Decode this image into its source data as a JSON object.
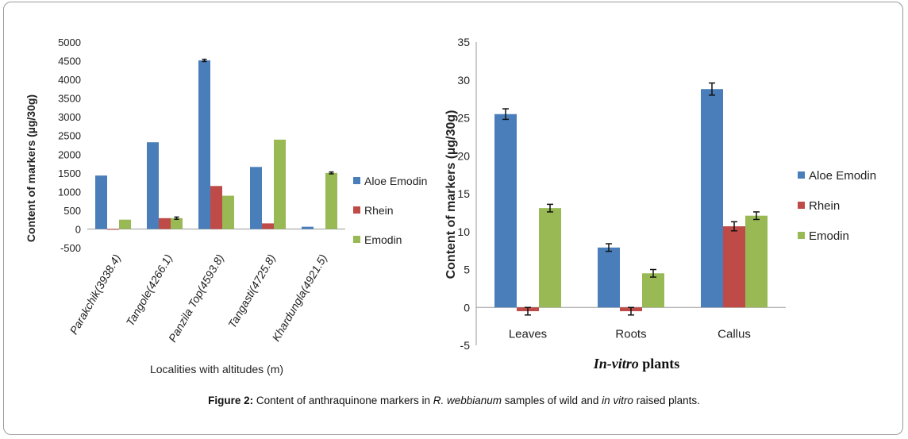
{
  "chart_data": [
    {
      "type": "bar",
      "categories": [
        "Parakchik(3938.4)",
        "Tangole(4266.1)",
        "Panzila Top(4593.8)",
        "Tangasti(4725.8)",
        "Khardungla(4921.5)"
      ],
      "series": [
        {
          "name": "Aloe Emodin",
          "values": [
            1430,
            2320,
            4510,
            1660,
            60
          ],
          "errors": [
            0,
            0,
            30,
            0,
            0
          ]
        },
        {
          "name": "Rhein",
          "values": [
            -20,
            290,
            1150,
            150,
            0
          ],
          "errors": [
            0,
            0,
            0,
            0,
            0
          ]
        },
        {
          "name": "Emodin",
          "values": [
            250,
            290,
            890,
            2390,
            1500
          ],
          "errors": [
            0,
            30,
            0,
            0,
            25
          ]
        }
      ],
      "title": "",
      "xlabel": "Localities with altitudes (m)",
      "ylabel": "Content of markers (µg/30g)",
      "ylim": [
        -500,
        5000
      ],
      "yticks": [
        "-500",
        "0",
        "500",
        "1000",
        "1500",
        "2000",
        "2500",
        "3000",
        "3500",
        "4000",
        "4500",
        "5000"
      ],
      "legend_position": "right"
    },
    {
      "type": "bar",
      "categories": [
        "Leaves",
        "Roots",
        "Callus"
      ],
      "series": [
        {
          "name": "Aloe Emodin",
          "values": [
            25.5,
            7.9,
            28.8
          ],
          "errors": [
            0.7,
            0.5,
            0.8
          ]
        },
        {
          "name": "Rhein",
          "values": [
            -0.5,
            -0.5,
            10.7
          ],
          "errors": [
            0.5,
            0.5,
            0.6
          ]
        },
        {
          "name": "Emodin",
          "values": [
            13.1,
            4.5,
            12.1
          ],
          "errors": [
            0.5,
            0.5,
            0.5
          ]
        }
      ],
      "title": "",
      "xlabel": "In-vitro plants",
      "xlabel_italic": "In-vitro",
      "xlabel_plain": " plants",
      "ylabel": "Content of markers (µg/30g)",
      "ylim": [
        -5,
        35
      ],
      "yticks": [
        "-5",
        "0",
        "5",
        "10",
        "15",
        "20",
        "25",
        "30",
        "35"
      ],
      "legend_position": "right"
    }
  ],
  "colors": {
    "Aloe Emodin": "#4a7ebb",
    "Rhein": "#be4b48",
    "Emodin": "#98b954"
  },
  "caption": {
    "label": "Figure 2:",
    "text1": " Content of anthraquinone markers in ",
    "species": "R. webbianum",
    "text2": " samples of wild and ",
    "invitro": "in vitro",
    "text3": " raised plants."
  }
}
